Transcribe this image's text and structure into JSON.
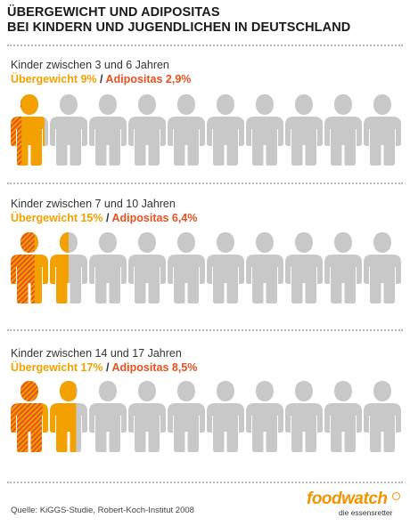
{
  "title": {
    "line1": "ÜBERGEWICHT UND ADIPOSITAS",
    "line2": "BEI KINDERN UND JUGENDLICHEN IN DEUTSCHLAND"
  },
  "chart_data": {
    "type": "pictogram",
    "icons_per_row": 10,
    "colors": {
      "overweight": "#f2a100",
      "obesity_hatch": "#e8501e",
      "other": "#c8c8c8"
    },
    "groups": [
      {
        "label": "Kinder zwischen 3 und 6 Jahren",
        "overweight_label": "Übergewicht 9%",
        "separator": "/",
        "obesity_label": "Adipositas 2,9%",
        "overweight_pct": 9,
        "obesity_pct": 2.9
      },
      {
        "label": "Kinder zwischen 7 und 10 Jahren",
        "overweight_label": "Übergewicht 15%",
        "separator": "/",
        "obesity_label": "Adipositas 6,4%",
        "overweight_pct": 15,
        "obesity_pct": 6.4
      },
      {
        "label": "Kinder zwischen 14 und 17 Jahren",
        "overweight_label": "Übergewicht 17%",
        "separator": "/",
        "obesity_label": "Adipositas 8,5%",
        "overweight_pct": 17,
        "obesity_pct": 8.5
      }
    ]
  },
  "source": "Quelle: KiGGS-Studie, Robert-Koch-Institut 2008",
  "logo": {
    "brand": "foodwatch",
    "tagline": "die essensretter"
  }
}
